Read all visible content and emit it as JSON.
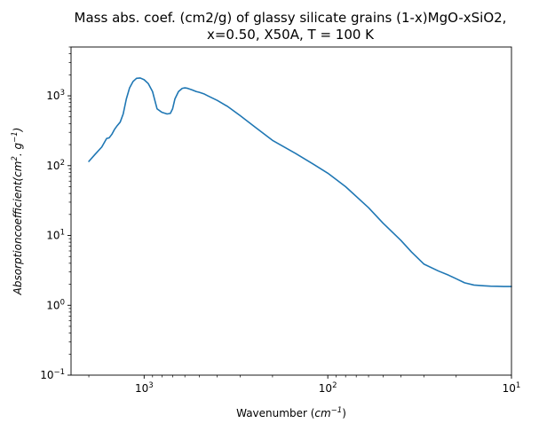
{
  "chart_data": {
    "type": "line",
    "title": "Mass abs. coef. (cm2/g) of glassy silicate grains (1-x)MgO-xSiO2, x=0.50, X50A, T = 100 K",
    "title_lines": [
      "Mass abs. coef. (cm2/g) of glassy silicate grains (1-x)MgO-xSiO2,",
      "x=0.50, X50A, T = 100 K"
    ],
    "xlabel": {
      "prefix": "Wavenumber (",
      "base": "cm",
      "sup": "−1",
      "suffix": ")"
    },
    "ylabel": {
      "main": "Absorptioncoefficient(cm",
      "sup1": "2",
      "mid": ". g",
      "sup2": "−1",
      "end": ")"
    },
    "x_scale": "log",
    "y_scale": "log",
    "x_inverted": true,
    "xlim": [
      2500,
      10
    ],
    "ylim": [
      0.1,
      5000
    ],
    "xticks": [
      {
        "value": 1000,
        "base": "10",
        "exp": "3"
      },
      {
        "value": 100,
        "base": "10",
        "exp": "2"
      },
      {
        "value": 10,
        "base": "10",
        "exp": "1"
      }
    ],
    "yticks": [
      {
        "value": 0.1,
        "base": "10",
        "exp": "−1"
      },
      {
        "value": 1,
        "base": "10",
        "exp": "0"
      },
      {
        "value": 10,
        "base": "10",
        "exp": "1"
      },
      {
        "value": 100,
        "base": "10",
        "exp": "2"
      },
      {
        "value": 1000,
        "base": "10",
        "exp": "3"
      }
    ],
    "grid": false,
    "series": [
      {
        "color": "#1f77b4",
        "x": [
          2000,
          1850,
          1700,
          1600,
          1550,
          1500,
          1450,
          1400,
          1350,
          1300,
          1250,
          1200,
          1150,
          1100,
          1050,
          1000,
          950,
          900,
          850,
          800,
          750,
          720,
          700,
          680,
          650,
          620,
          600,
          580,
          550,
          520,
          500,
          470,
          450,
          400,
          350,
          300,
          250,
          200,
          150,
          120,
          100,
          80,
          60,
          50,
          40,
          35,
          30,
          25,
          22,
          20,
          18,
          16,
          14,
          13,
          12,
          11,
          10
        ],
        "y": [
          115,
          145,
          185,
          245,
          250,
          280,
          330,
          375,
          420,
          550,
          900,
          1300,
          1600,
          1780,
          1800,
          1700,
          1500,
          1150,
          650,
          580,
          550,
          560,
          650,
          900,
          1150,
          1280,
          1300,
          1280,
          1220,
          1150,
          1120,
          1060,
          1000,
          860,
          700,
          520,
          360,
          230,
          150,
          105,
          78,
          50,
          25,
          15,
          8.5,
          5.8,
          3.9,
          3.1,
          2.7,
          2.4,
          2.1,
          1.95,
          1.9,
          1.88,
          1.87,
          1.86,
          1.86
        ]
      }
    ]
  }
}
